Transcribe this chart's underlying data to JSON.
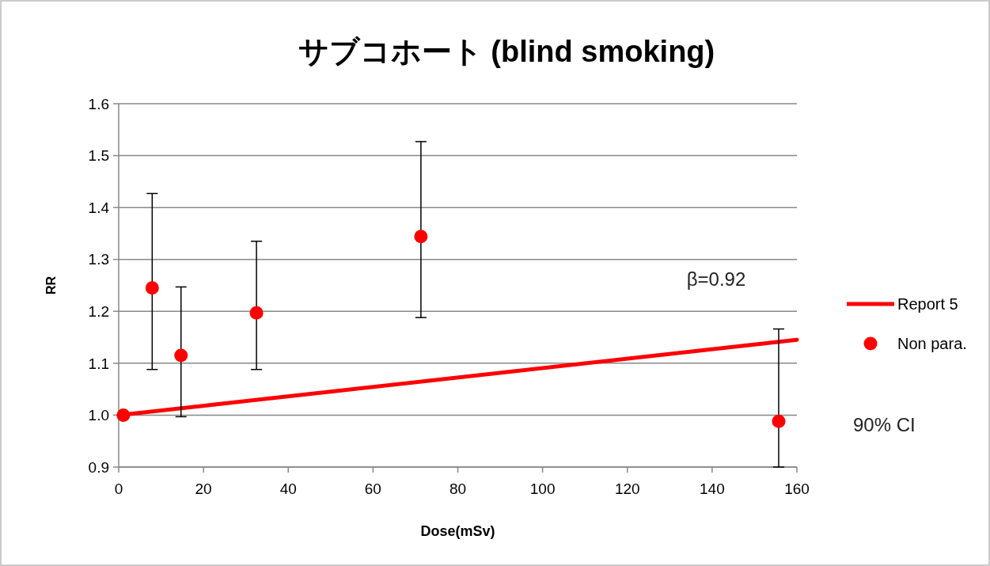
{
  "chart_data": {
    "type": "scatter",
    "title": "サブコホート (blind smoking)",
    "xlabel": "Dose(mSv)",
    "ylabel": "RR",
    "xlim": [
      0,
      160
    ],
    "xticks": [
      0,
      20,
      40,
      60,
      80,
      100,
      120,
      140,
      160
    ],
    "ylim": [
      0.9,
      1.6
    ],
    "yticks": [
      {
        "value": 0.9,
        "label": "0.9"
      },
      {
        "value": 1.0,
        "label": "1.0"
      },
      {
        "value": 1.1,
        "label": "1.1"
      },
      {
        "value": 1.2,
        "label": "1.2"
      },
      {
        "value": 1.3,
        "label": "1.3"
      },
      {
        "value": 1.4,
        "label": "1.4"
      },
      {
        "value": 1.5,
        "label": "1.5"
      },
      {
        "value": 1.6,
        "label": "1.6"
      }
    ],
    "grid": "y",
    "legend": "right",
    "annotations": [
      "β=0.92",
      "90% CI"
    ],
    "series": [
      {
        "name": "Report 5",
        "type": "line",
        "color": "#ff0000",
        "marker": "none",
        "line_style": "solid",
        "x": [
          0,
          160
        ],
        "values": [
          1.0,
          1.145
        ]
      },
      {
        "name": "Non para.",
        "color": "#ff0000",
        "marker": "circle",
        "x": [
          1.1,
          7.9,
          14.7,
          32.5,
          71.3,
          155.7
        ],
        "values": [
          1.0,
          1.245,
          1.115,
          1.197,
          1.344,
          0.988
        ],
        "errors": [
          null,
          [
            1.088,
            1.427
          ],
          [
            0.997,
            1.247
          ],
          [
            1.088,
            1.335
          ],
          [
            1.188,
            1.527
          ],
          [
            0.9,
            1.166
          ]
        ]
      }
    ]
  }
}
